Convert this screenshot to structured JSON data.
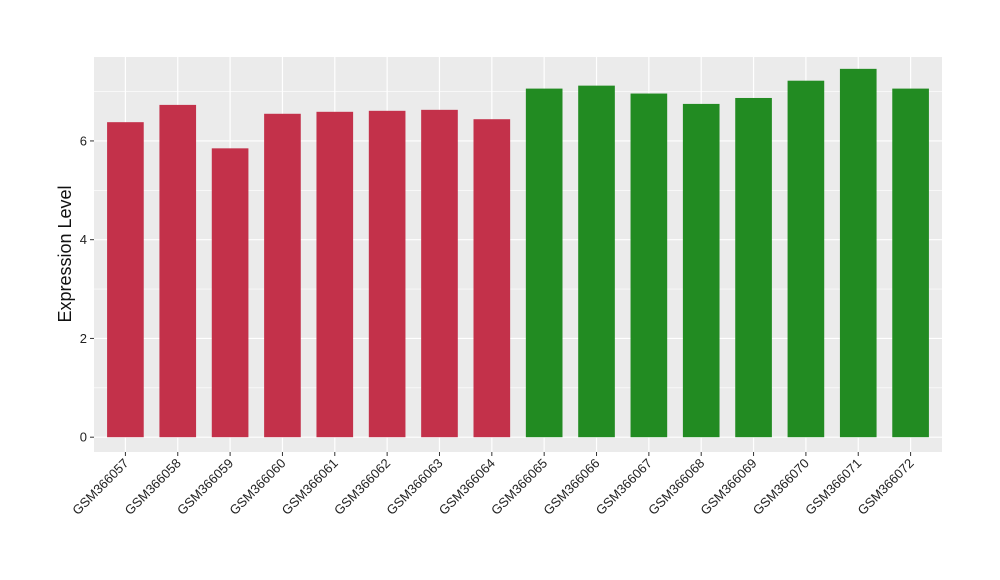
{
  "chart_data": {
    "type": "bar",
    "title": "",
    "xlabel": "",
    "ylabel": "Expression Level",
    "ylim": [
      -0.3,
      7.7
    ],
    "yticks": [
      0,
      2,
      4,
      6
    ],
    "grid": true,
    "legend": "none",
    "categories": [
      "GSM366057",
      "GSM366058",
      "GSM366059",
      "GSM366060",
      "GSM366061",
      "GSM366062",
      "GSM366063",
      "GSM366064",
      "GSM366065",
      "GSM366066",
      "GSM366067",
      "GSM366068",
      "GSM366069",
      "GSM366070",
      "GSM366071",
      "GSM366072"
    ],
    "values": [
      6.38,
      6.73,
      5.85,
      6.55,
      6.59,
      6.61,
      6.63,
      6.44,
      7.06,
      7.12,
      6.96,
      6.75,
      6.87,
      7.22,
      7.46,
      7.06
    ],
    "bar_colors": [
      "#C3314A",
      "#C3314A",
      "#C3314A",
      "#C3314A",
      "#C3314A",
      "#C3314A",
      "#C3314A",
      "#C3314A",
      "#228B22",
      "#228B22",
      "#228B22",
      "#228B22",
      "#228B22",
      "#228B22",
      "#228B22",
      "#228B22"
    ],
    "panel_background": "#EBEBEB",
    "grid_color": "#FFFFFF"
  }
}
